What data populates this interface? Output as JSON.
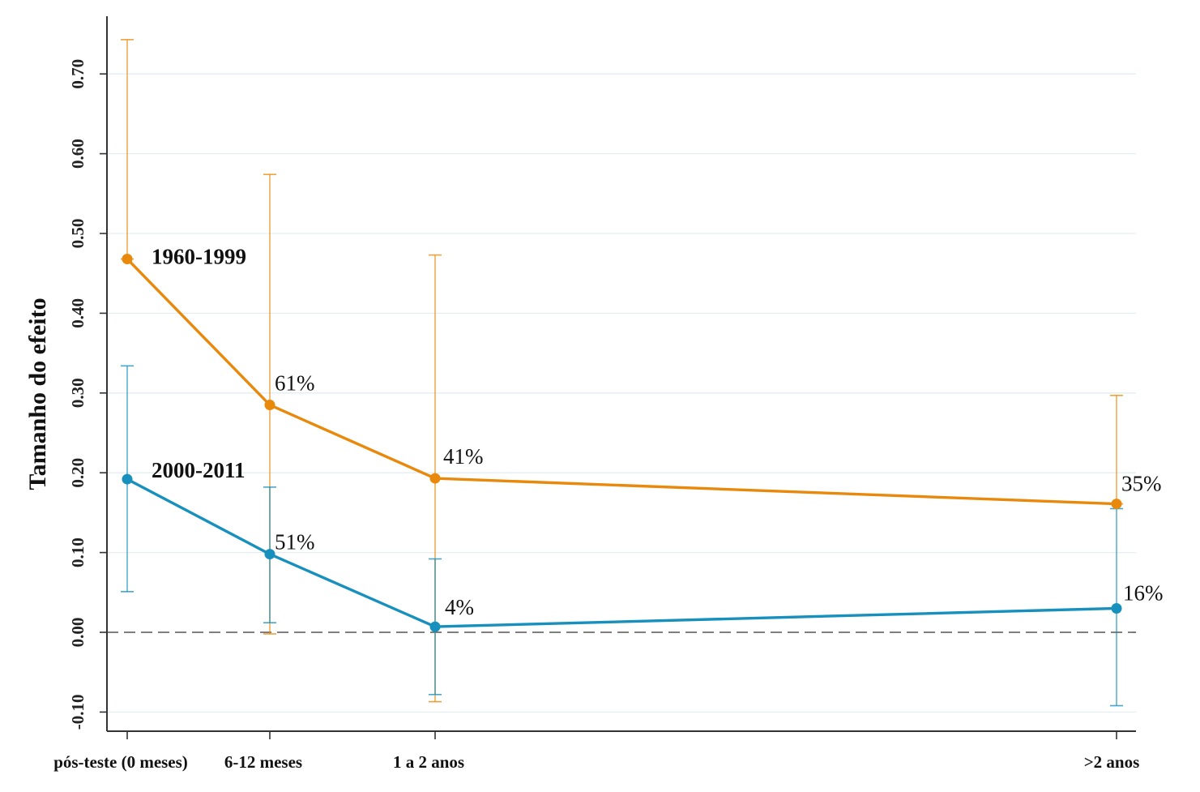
{
  "chart_data": {
    "type": "line",
    "title": "",
    "xlabel": "",
    "ylabel": "Tamanho do efeito",
    "categories": [
      "pós-teste (0 meses)",
      "6-12 meses",
      "1 a 2 anos",
      ">2 anos"
    ],
    "ylim": [
      -0.12,
      0.76
    ],
    "yticks": [
      -0.1,
      0.0,
      0.1,
      0.2,
      0.3,
      0.4,
      0.5,
      0.6,
      0.7
    ],
    "ytick_labels": [
      "-0.10",
      "0.00",
      "0.10",
      "0.20",
      "0.30",
      "0.40",
      "0.50",
      "0.60",
      "0.70"
    ],
    "grid": true,
    "reference_line": 0.0,
    "series": [
      {
        "name": "1960-1999",
        "color": "#E8890C",
        "values": [
          0.468,
          0.285,
          0.193,
          0.161
        ],
        "ci_low": [
          0.468,
          -0.002,
          -0.087,
          0.161
        ],
        "ci_high": [
          0.743,
          0.574,
          0.473,
          0.297
        ],
        "point_labels": [
          "",
          "61%",
          "41%",
          "35%"
        ]
      },
      {
        "name": "2000-2011",
        "color": "#1890BE",
        "values": [
          0.192,
          0.098,
          0.007,
          0.03
        ],
        "ci_low": [
          0.051,
          0.012,
          -0.078,
          -0.092
        ],
        "ci_high": [
          0.334,
          0.182,
          0.092,
          0.155
        ],
        "point_labels": [
          "",
          "51%",
          "4%",
          "16%"
        ]
      }
    ]
  }
}
